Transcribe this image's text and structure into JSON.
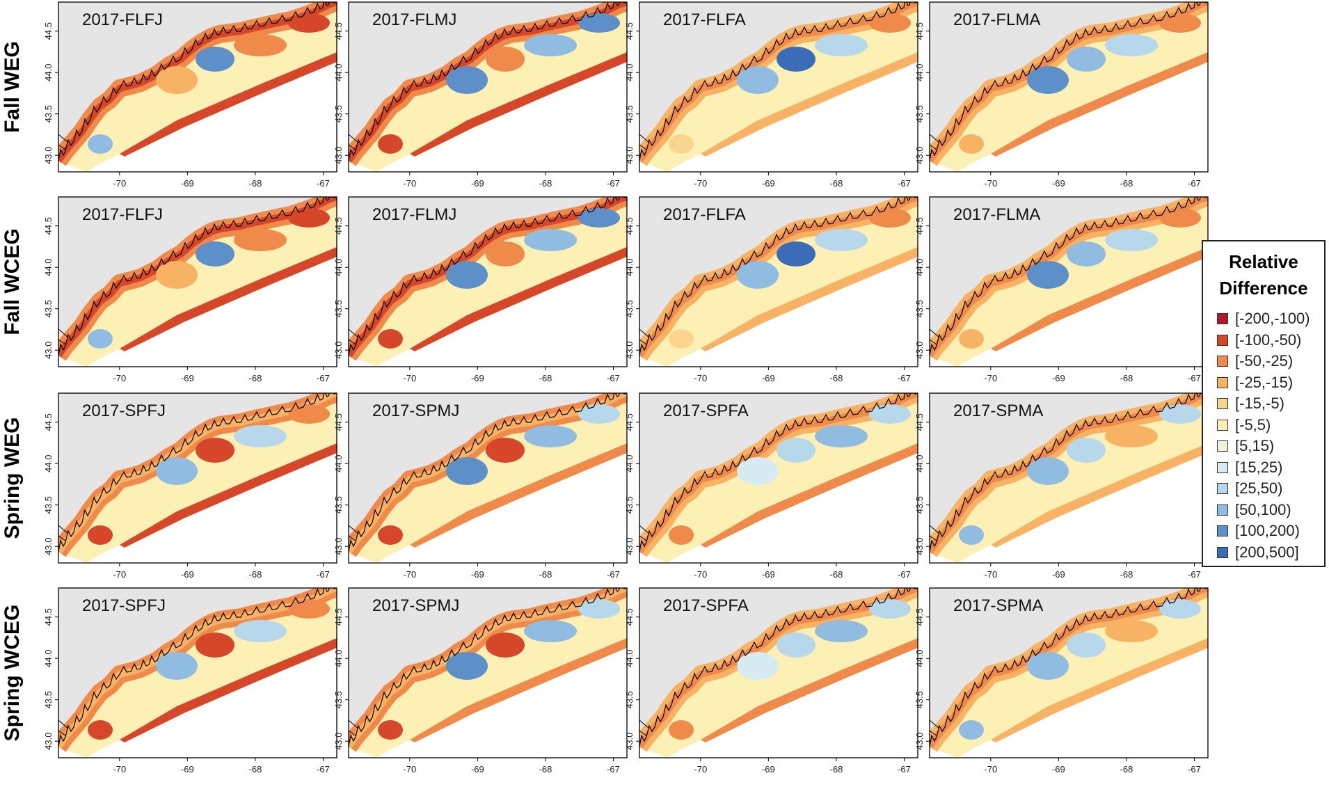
{
  "chart_data": {
    "type": "heatmap",
    "figure": "Relative difference maps of coastal Gulf of Maine (longitude -70 to -67, latitude 43.0 to 44.5)",
    "rows": [
      {
        "label": "Fall WEG",
        "panels": [
          "2017-FLFJ",
          "2017-FLMJ",
          "2017-FLFA",
          "2017-FLMA"
        ]
      },
      {
        "label": "Fall WCEG",
        "panels": [
          "2017-FLFJ",
          "2017-FLMJ",
          "2017-FLFA",
          "2017-FLMA"
        ]
      },
      {
        "label": "Spring WEG",
        "panels": [
          "2017-SPFJ",
          "2017-SPMJ",
          "2017-SPFA",
          "2017-SPMA"
        ]
      },
      {
        "label": "Spring WCEG",
        "panels": [
          "2017-SPFJ",
          "2017-SPMJ",
          "2017-SPFA",
          "2017-SPMA"
        ]
      }
    ],
    "x_axis": {
      "ticks": [
        "-70",
        "-69",
        "-68",
        "-67"
      ],
      "range": [
        -70.9,
        -66.8
      ]
    },
    "y_axis": {
      "ticks": [
        "43.0",
        "43.5",
        "44.0",
        "44.5"
      ],
      "range": [
        42.8,
        44.85
      ]
    },
    "legend": {
      "title_lines": [
        "Relative",
        "Difference"
      ],
      "items": [
        {
          "label": "[-200,-100)",
          "color": "#b2182b"
        },
        {
          "label": "[-100,-50)",
          "color": "#d6472a"
        },
        {
          "label": "[-50,-25)",
          "color": "#ef8a4a"
        },
        {
          "label": "[-25,-15)",
          "color": "#f7b263"
        },
        {
          "label": "[-15,-5)",
          "color": "#fbd48f"
        },
        {
          "label": "[-5,5)",
          "color": "#fcf0b4"
        },
        {
          "label": "[5,15)",
          "color": "#eef5dc"
        },
        {
          "label": "[15,25)",
          "color": "#d7ebf2"
        },
        {
          "label": "[25,50)",
          "color": "#b6d8ea"
        },
        {
          "label": "[50,100)",
          "color": "#8fbce0"
        },
        {
          "label": "[100,200)",
          "color": "#5d8fc9"
        },
        {
          "label": "[200,500]",
          "color": "#3a6cba"
        }
      ]
    }
  }
}
